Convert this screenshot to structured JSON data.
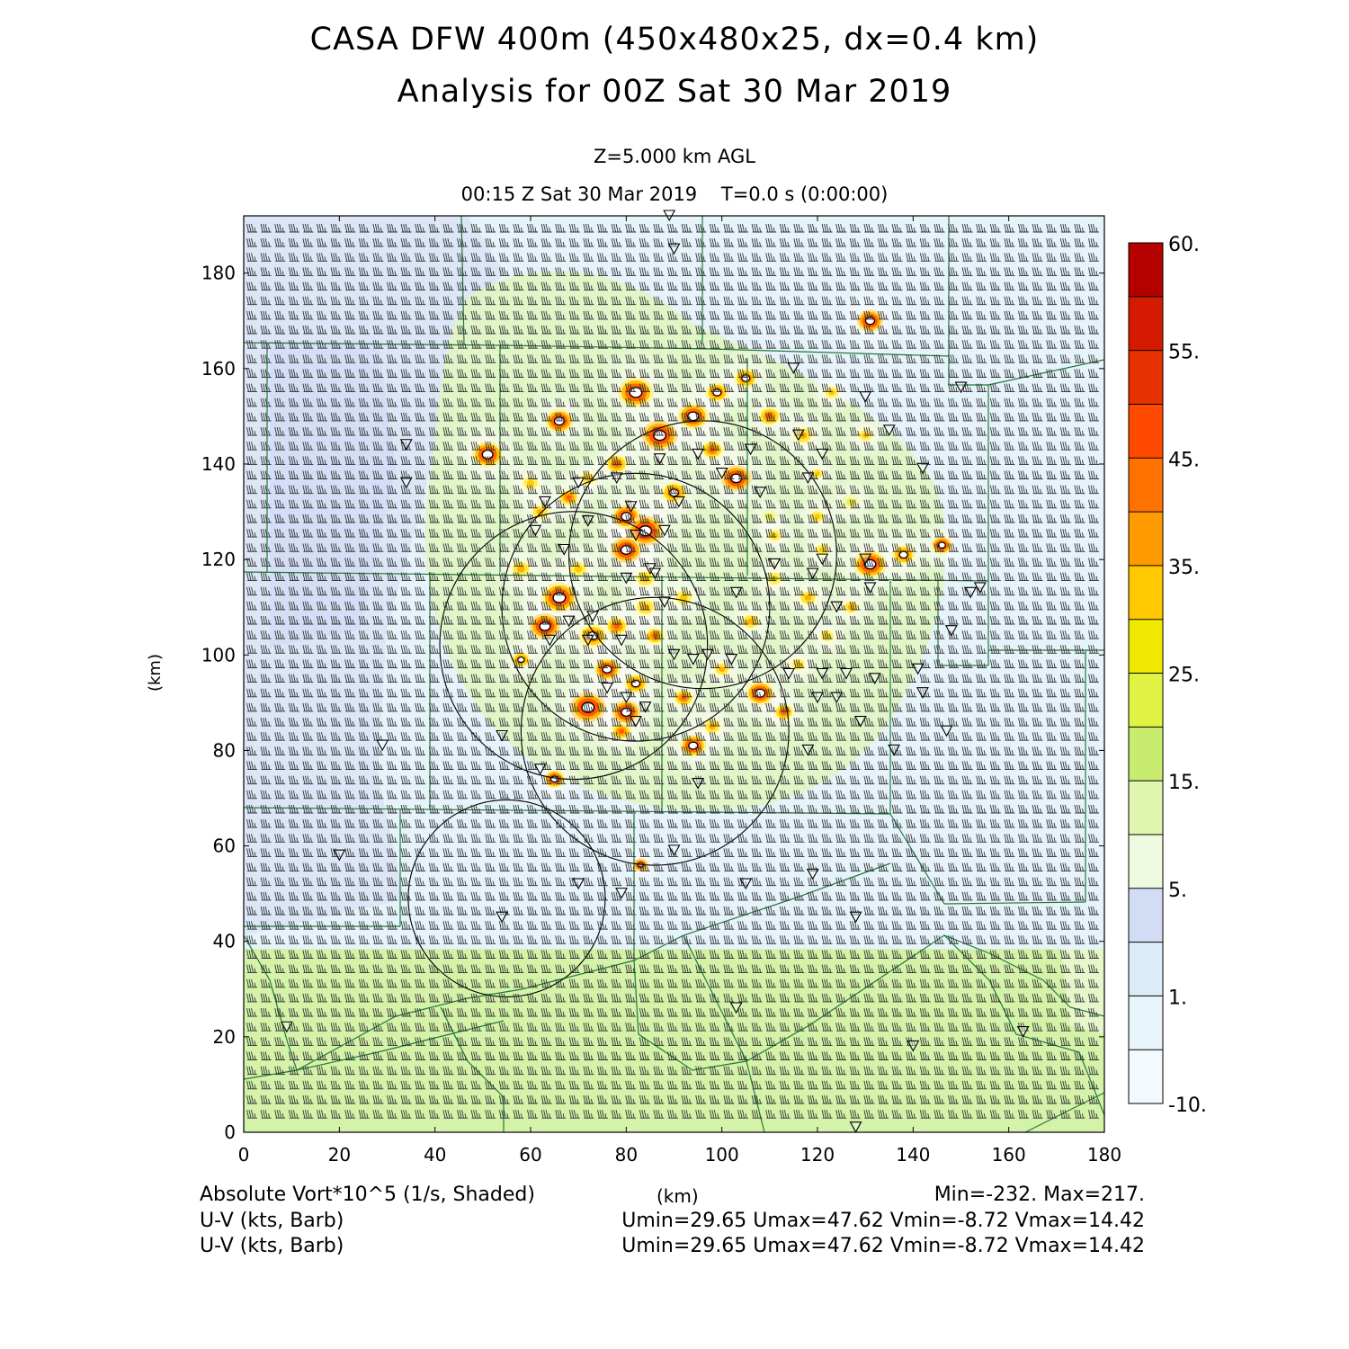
{
  "title_line1": "CASA DFW 400m (450x480x25, dx=0.4 km)",
  "title_line2": "Analysis for 00Z Sat 30 Mar 2019",
  "subtitle_level": "Z=5.000 km AGL",
  "subtitle_time": "00:15 Z Sat 30 Mar 2019    T=0.0 s (0:00:00)",
  "axes": {
    "xlabel": "(km)",
    "ylabel": "(km)",
    "xlim": [
      0,
      180
    ],
    "ylim": [
      0,
      192
    ],
    "x_ticks": [
      "0",
      "20",
      "40",
      "60",
      "80",
      "100",
      "120",
      "140",
      "160",
      "180"
    ],
    "y_ticks": [
      "0",
      "20",
      "40",
      "60",
      "80",
      "100",
      "120",
      "140",
      "160",
      "180"
    ]
  },
  "colorbar": {
    "labels": [
      "60.",
      "55.",
      "45.",
      "35.",
      "25.",
      "15.",
      "5.",
      "1.",
      "-10."
    ],
    "colors": [
      "#b50000",
      "#d41a00",
      "#e63200",
      "#ff4a00",
      "#ff7200",
      "#ff9a00",
      "#ffc800",
      "#f0e800",
      "#e0f244",
      "#c8ec6e",
      "#dff5b0",
      "#eefae0",
      "#d2dcf5",
      "#dcebf8",
      "#e8f4fb",
      "#f2fafe"
    ]
  },
  "footer": {
    "field_label": "Absolute Vort*10^5 (1/s, Shaded)",
    "units_label": "(km)",
    "minmax": "Min=-232. Max=217.",
    "barb_label_1": "U-V (kts, Barb)",
    "barb_stats_1": "Umin=29.65 Umax=47.62 Vmin=-8.72 Vmax=14.42",
    "barb_label_2": "U-V (kts, Barb)",
    "barb_stats_2": "Umin=29.65 Umax=47.62 Vmin=-8.72 Vmax=14.42"
  },
  "colors": {
    "background": "#e6f3fb",
    "southern_band": "#d4f2a8",
    "county_lines": "#1f7a3a",
    "range_rings": "#000000",
    "barbs": "#333333"
  },
  "map_data": {
    "vorticity_cells_km": [
      [
        131,
        170,
        2.2,
        55
      ],
      [
        51,
        142,
        2.6,
        50
      ],
      [
        66,
        149,
        2.4,
        50
      ],
      [
        87,
        146,
        3,
        55
      ],
      [
        82,
        155,
        3,
        50
      ],
      [
        94,
        150,
        2.6,
        50
      ],
      [
        99,
        155,
        2,
        45
      ],
      [
        105,
        158,
        2,
        45
      ],
      [
        110,
        150,
        2,
        40
      ],
      [
        117,
        146,
        2,
        35
      ],
      [
        123,
        155,
        1.6,
        30
      ],
      [
        130,
        146,
        1.6,
        30
      ],
      [
        103,
        137,
        2.6,
        55
      ],
      [
        98,
        143,
        2,
        40
      ],
      [
        90,
        134,
        2.2,
        45
      ],
      [
        80,
        129,
        2.4,
        50
      ],
      [
        84,
        126,
        3,
        55
      ],
      [
        68,
        133,
        1.8,
        40
      ],
      [
        78,
        140,
        2,
        40
      ],
      [
        72,
        137,
        1.6,
        35
      ],
      [
        62,
        130,
        1.8,
        35
      ],
      [
        60,
        136,
        1.8,
        30
      ],
      [
        58,
        118,
        2,
        35
      ],
      [
        63,
        106,
        2.6,
        55
      ],
      [
        66,
        112,
        3,
        50
      ],
      [
        58,
        99,
        1.6,
        45
      ],
      [
        73,
        104,
        2.4,
        45
      ],
      [
        78,
        106,
        2,
        40
      ],
      [
        84,
        110,
        2,
        35
      ],
      [
        92,
        112,
        2,
        30
      ],
      [
        86,
        104,
        1.8,
        40
      ],
      [
        80,
        122,
        2.6,
        55
      ],
      [
        84,
        116,
        2,
        35
      ],
      [
        70,
        118,
        2,
        30
      ],
      [
        76,
        97,
        2.2,
        50
      ],
      [
        72,
        89,
        3,
        55
      ],
      [
        80,
        88,
        2.4,
        55
      ],
      [
        82,
        94,
        2,
        45
      ],
      [
        79,
        84,
        1.8,
        40
      ],
      [
        94,
        81,
        2.2,
        50
      ],
      [
        92,
        91,
        1.8,
        40
      ],
      [
        98,
        85,
        1.8,
        35
      ],
      [
        108,
        92,
        2.4,
        50
      ],
      [
        113,
        88,
        1.8,
        40
      ],
      [
        100,
        97,
        1.6,
        35
      ],
      [
        116,
        98,
        1.6,
        30
      ],
      [
        106,
        107,
        1.8,
        35
      ],
      [
        111,
        116,
        1.8,
        30
      ],
      [
        118,
        112,
        1.8,
        35
      ],
      [
        122,
        104,
        1.6,
        30
      ],
      [
        127,
        110,
        1.6,
        35
      ],
      [
        131,
        119,
        2.8,
        50
      ],
      [
        138,
        121,
        2,
        45
      ],
      [
        146,
        123,
        1.8,
        50
      ],
      [
        121,
        122,
        1.6,
        30
      ],
      [
        111,
        125,
        1.6,
        30
      ],
      [
        120,
        129,
        1.6,
        30
      ],
      [
        127,
        132,
        1.6,
        25
      ],
      [
        65,
        74,
        1.8,
        50
      ],
      [
        83,
        56,
        1.3,
        55
      ],
      [
        120,
        138,
        1.4,
        30
      ],
      [
        110,
        129,
        1.4,
        25
      ]
    ],
    "radar_sites_km": [
      [
        89,
        192
      ],
      [
        90,
        185
      ],
      [
        115,
        160
      ],
      [
        130,
        154
      ],
      [
        135,
        147
      ],
      [
        116,
        146
      ],
      [
        121,
        142
      ],
      [
        106,
        143
      ],
      [
        87,
        141
      ],
      [
        95,
        142
      ],
      [
        108,
        134
      ],
      [
        100,
        138
      ],
      [
        118,
        137
      ],
      [
        142,
        139
      ],
      [
        78,
        137
      ],
      [
        34,
        144
      ],
      [
        34,
        136
      ],
      [
        63,
        132
      ],
      [
        70,
        136
      ],
      [
        72,
        128
      ],
      [
        81,
        131
      ],
      [
        82,
        125
      ],
      [
        91,
        132
      ],
      [
        88,
        126
      ],
      [
        61,
        126
      ],
      [
        67,
        122
      ],
      [
        85,
        118
      ],
      [
        86,
        117
      ],
      [
        80,
        116
      ],
      [
        111,
        119
      ],
      [
        121,
        120
      ],
      [
        119,
        117
      ],
      [
        130,
        120
      ],
      [
        103,
        113
      ],
      [
        131,
        114
      ],
      [
        88,
        111
      ],
      [
        124,
        110
      ],
      [
        68,
        107
      ],
      [
        73,
        108
      ],
      [
        72,
        103
      ],
      [
        64,
        103
      ],
      [
        79,
        103
      ],
      [
        90,
        100
      ],
      [
        94,
        99
      ],
      [
        97,
        100
      ],
      [
        102,
        99
      ],
      [
        114,
        96
      ],
      [
        121,
        96
      ],
      [
        126,
        96
      ],
      [
        132,
        95
      ],
      [
        124,
        91
      ],
      [
        142,
        92
      ],
      [
        148,
        105
      ],
      [
        141,
        97
      ],
      [
        150,
        156
      ],
      [
        154,
        114
      ],
      [
        152,
        113
      ],
      [
        80,
        91
      ],
      [
        84,
        89
      ],
      [
        82,
        86
      ],
      [
        76,
        93
      ],
      [
        120,
        91
      ],
      [
        129,
        86
      ],
      [
        136,
        80
      ],
      [
        147,
        84
      ],
      [
        54,
        83
      ],
      [
        29,
        81
      ],
      [
        62,
        76
      ],
      [
        95,
        73
      ],
      [
        118,
        80
      ],
      [
        20,
        58
      ],
      [
        90,
        59
      ],
      [
        70,
        52
      ],
      [
        79,
        50
      ],
      [
        105,
        52
      ],
      [
        119,
        54
      ],
      [
        54,
        45
      ],
      [
        128,
        45
      ],
      [
        9,
        22
      ],
      [
        103,
        26
      ],
      [
        140,
        18
      ],
      [
        163,
        21
      ],
      [
        128,
        1
      ]
    ],
    "range_rings_km": [
      [
        82.0,
        110.0,
        28.0
      ],
      [
        96.0,
        121.0,
        28.0
      ],
      [
        69.0,
        102.0,
        28.0
      ],
      [
        86.0,
        84.0,
        28.0
      ],
      [
        55.0,
        49.0,
        20.6
      ]
    ]
  }
}
